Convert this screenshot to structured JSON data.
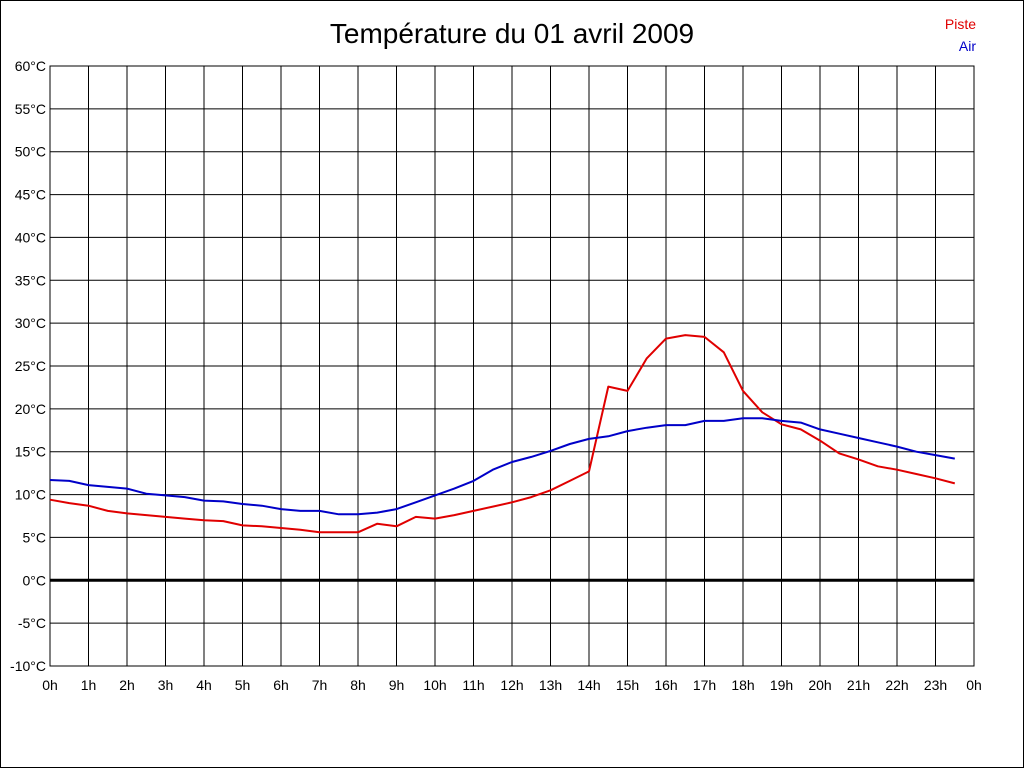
{
  "chart_data": {
    "type": "line",
    "title": "Température du 01 avril 2009",
    "xlabel": "",
    "ylabel": "",
    "ylim": [
      -10,
      60
    ],
    "y_ticks": [
      "60°C",
      "55°C",
      "50°C",
      "45°C",
      "40°C",
      "35°C",
      "30°C",
      "25°C",
      "20°C",
      "15°C",
      "10°C",
      "5°C",
      "0°C",
      "-5°C",
      "-10°C"
    ],
    "x_ticks": [
      "0h",
      "1h",
      "2h",
      "3h",
      "4h",
      "5h",
      "6h",
      "7h",
      "8h",
      "9h",
      "10h",
      "11h",
      "12h",
      "13h",
      "14h",
      "15h",
      "16h",
      "17h",
      "18h",
      "19h",
      "20h",
      "21h",
      "22h",
      "23h",
      "0h"
    ],
    "grid": true,
    "legend_position": "top-right",
    "zero_line": true,
    "series": [
      {
        "name": "Piste",
        "color": "#e00000",
        "x": [
          0,
          0.5,
          1,
          1.5,
          2,
          2.5,
          3,
          3.5,
          4,
          4.5,
          5,
          5.5,
          6,
          6.5,
          7,
          7.5,
          8,
          8.5,
          9,
          9.5,
          10,
          10.5,
          11,
          11.5,
          12,
          12.5,
          13,
          13.5,
          14,
          14.5,
          15,
          15.5,
          16,
          16.5,
          17,
          17.5,
          18,
          18.5,
          19,
          19.5,
          20,
          20.5,
          21,
          21.5,
          22,
          22.5,
          23,
          23.5
        ],
        "values": [
          9.4,
          9,
          8.7,
          8.1,
          7.8,
          7.6,
          7.4,
          7.2,
          7,
          6.9,
          6.4,
          6.3,
          6.1,
          5.9,
          5.6,
          5.6,
          5.6,
          6.6,
          6.3,
          7.4,
          7.2,
          7.6,
          8.1,
          8.6,
          9.1,
          9.7,
          10.5,
          11.6,
          12.7,
          22.6,
          22.1,
          25.9,
          28.2,
          28.6,
          28.4,
          26.6,
          22.1,
          19.6,
          18.2,
          17.6,
          16.3,
          14.8,
          14.1,
          13.3,
          12.9,
          12.4,
          11.9,
          11.3
        ]
      },
      {
        "name": "Air",
        "color": "#0000c8",
        "x": [
          0,
          0.5,
          1,
          1.5,
          2,
          2.5,
          3,
          3.5,
          4,
          4.5,
          5,
          5.5,
          6,
          6.5,
          7,
          7.5,
          8,
          8.5,
          9,
          9.5,
          10,
          10.5,
          11,
          11.5,
          12,
          12.5,
          13,
          13.5,
          14,
          14.5,
          15,
          15.5,
          16,
          16.5,
          17,
          17.5,
          18,
          18.5,
          19,
          19.5,
          20,
          20.5,
          21,
          21.5,
          22,
          22.5,
          23,
          23.5
        ],
        "values": [
          11.7,
          11.6,
          11.1,
          10.9,
          10.7,
          10.1,
          9.9,
          9.7,
          9.3,
          9.2,
          8.9,
          8.7,
          8.3,
          8.1,
          8.1,
          7.7,
          7.7,
          7.9,
          8.3,
          9.1,
          9.9,
          10.7,
          11.6,
          12.9,
          13.8,
          14.4,
          15.1,
          15.9,
          16.5,
          16.8,
          17.4,
          17.8,
          18.1,
          18.1,
          18.6,
          18.6,
          18.9,
          18.9,
          18.6,
          18.4,
          17.6,
          17.1,
          16.6,
          16.1,
          15.6,
          15,
          14.6,
          14.2
        ]
      }
    ]
  }
}
